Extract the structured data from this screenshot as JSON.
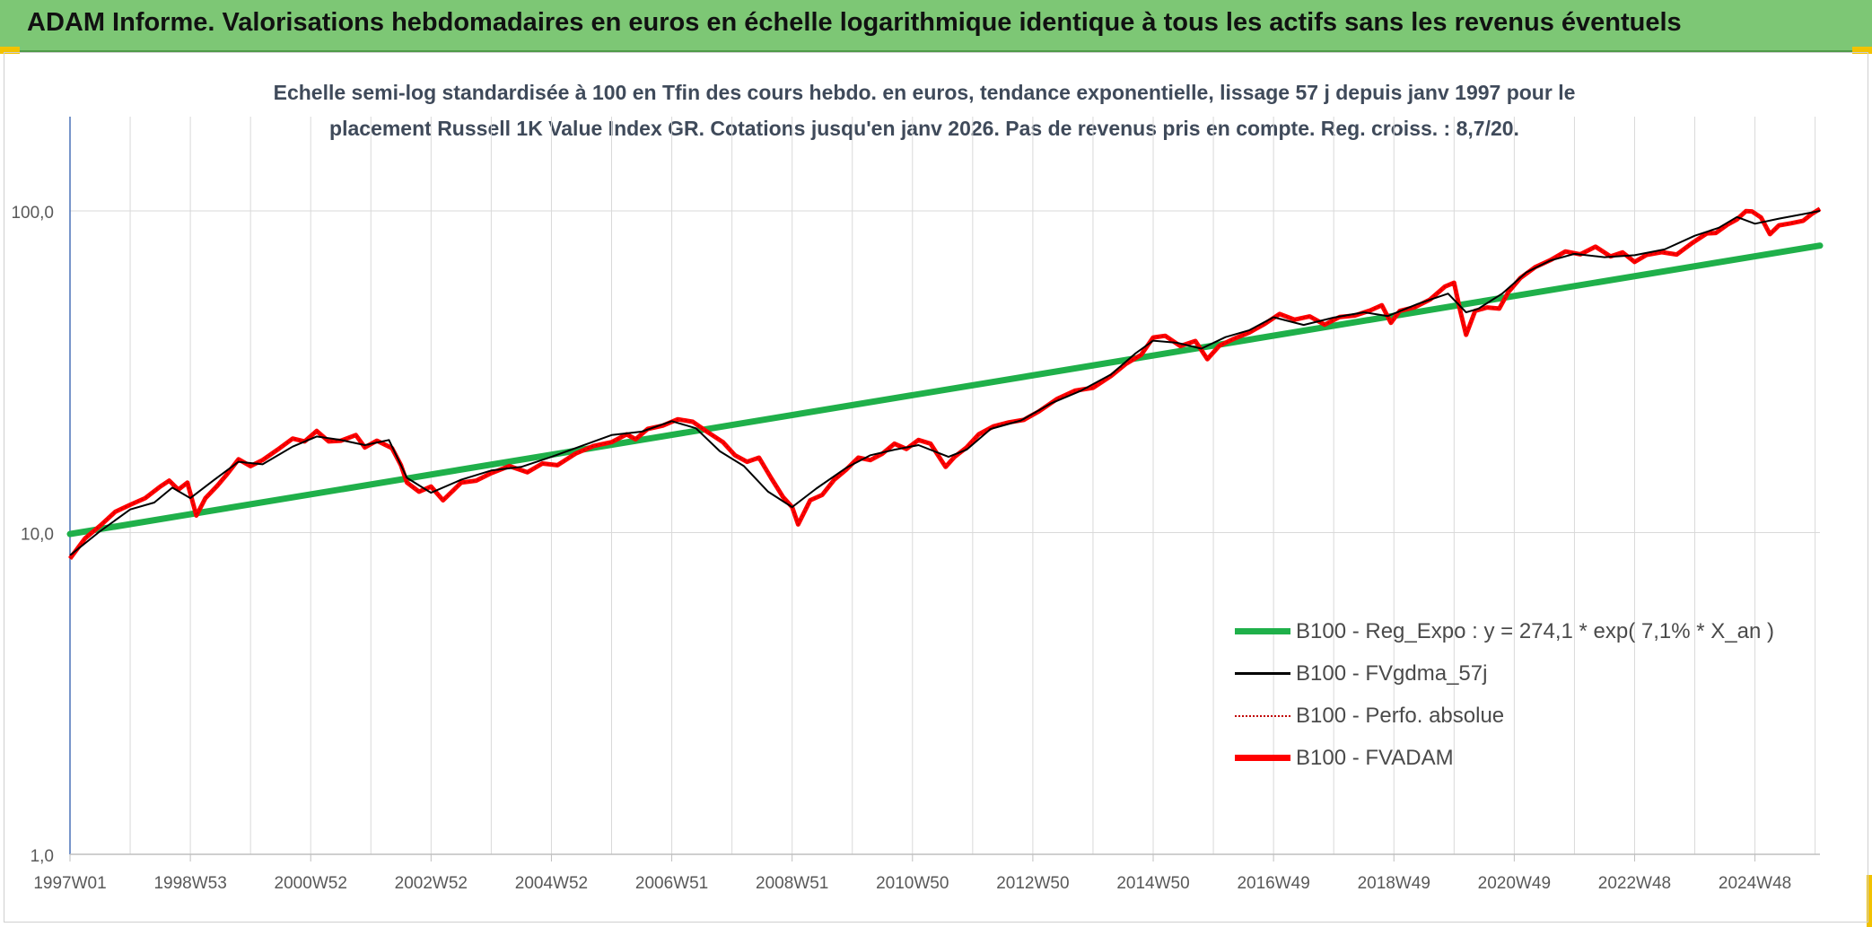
{
  "banner": {
    "title": "ADAM Informe. Valorisations hebdomadaires en euros en échelle logarithmique identique à tous les actifs sans les revenus éventuels"
  },
  "colors": {
    "banner_bg": "#7dc775",
    "reg_expo": "#1fb04a",
    "fvgdma": "#000000",
    "perfo": "#c00000",
    "fvadam": "#ff0000",
    "grid": "#d9d9d9"
  },
  "chart_data": {
    "type": "line",
    "title_line1": "Echelle semi-log standardisée à 100 en Tfin des cours hebdo. en euros, tendance exponentielle, lissage 57 j depuis janv 1997 pour le",
    "title_line2": "placement Russell 1K Value Index GR. Cotations jusqu'en janv 2026. Pas de revenus pris en compte. Reg. croiss. : 8,7/20.",
    "y_scale": "log",
    "ylim": [
      1,
      100
    ],
    "xlim": [
      1997.0,
      2026.08
    ],
    "y_ticks": [
      {
        "value": 1,
        "label": "1,0"
      },
      {
        "value": 10,
        "label": "10,0"
      },
      {
        "value": 100,
        "label": "100,0"
      }
    ],
    "x_ticks": [
      {
        "value": 1997.0,
        "label": "1997W01"
      },
      {
        "value": 1999.0,
        "label": "1998W53"
      },
      {
        "value": 2001.0,
        "label": "2000W52"
      },
      {
        "value": 2003.0,
        "label": "2002W52"
      },
      {
        "value": 2005.0,
        "label": "2004W52"
      },
      {
        "value": 2007.0,
        "label": "2006W51"
      },
      {
        "value": 2009.0,
        "label": "2008W51"
      },
      {
        "value": 2011.0,
        "label": "2010W50"
      },
      {
        "value": 2013.0,
        "label": "2012W50"
      },
      {
        "value": 2015.0,
        "label": "2014W50"
      },
      {
        "value": 2017.0,
        "label": "2016W49"
      },
      {
        "value": 2019.0,
        "label": "2018W49"
      },
      {
        "value": 2021.0,
        "label": "2020W49"
      },
      {
        "value": 2023.0,
        "label": "2022W48"
      },
      {
        "value": 2025.0,
        "label": "2024W48"
      }
    ],
    "grid": true,
    "legend_position": "bottom-right",
    "series": [
      {
        "name": "B100 - Reg_Expo : y = 274,1 * exp( 7,1% *  X_an )",
        "style": "thick-solid",
        "x": [
          1997.0,
          2026.08
        ],
        "y": [
          9.9,
          78.0
        ]
      },
      {
        "name": "B100 - FVgdma_57j",
        "style": "thin-solid",
        "x": [
          1997.0,
          1997.5,
          1998.0,
          1998.4,
          1998.7,
          1999.0,
          1999.4,
          1999.8,
          2000.2,
          2000.7,
          2001.1,
          2001.5,
          2001.9,
          2002.3,
          2002.6,
          2003.0,
          2003.5,
          2004.0,
          2004.5,
          2005.0,
          2005.5,
          2006.0,
          2006.5,
          2007.0,
          2007.4,
          2007.8,
          2008.2,
          2008.6,
          2009.0,
          2009.4,
          2009.9,
          2010.3,
          2010.7,
          2011.1,
          2011.6,
          2011.9,
          2012.3,
          2012.8,
          2013.3,
          2013.8,
          2014.3,
          2014.7,
          2015.0,
          2015.4,
          2015.8,
          2016.2,
          2016.6,
          2017.0,
          2017.5,
          2018.0,
          2018.5,
          2018.9,
          2019.4,
          2019.9,
          2020.2,
          2020.4,
          2020.8,
          2021.2,
          2021.6,
          2022.0,
          2022.5,
          2023.0,
          2023.5,
          2024.0,
          2024.4,
          2024.7,
          2025.0,
          2025.4,
          2025.8,
          2026.08
        ],
        "y": [
          8.5,
          10.1,
          11.8,
          12.4,
          13.8,
          12.8,
          14.6,
          16.6,
          16.3,
          18.5,
          19.9,
          19.4,
          18.7,
          19.4,
          14.8,
          13.3,
          14.6,
          15.6,
          16.0,
          17.2,
          18.6,
          20.1,
          20.6,
          22.2,
          21.1,
          17.9,
          16.1,
          13.4,
          12.0,
          13.7,
          15.9,
          17.4,
          18.1,
          18.7,
          17.2,
          18.1,
          21.0,
          22.3,
          25.2,
          27.6,
          31.0,
          36.0,
          39.5,
          38.9,
          37.3,
          40.5,
          42.6,
          46.7,
          44.2,
          46.6,
          48.4,
          47.1,
          51.4,
          55.3,
          48.4,
          49.6,
          55.3,
          64.4,
          70.1,
          73.5,
          71.8,
          72.8,
          75.9,
          83.7,
          88.6,
          95.7,
          91.2,
          94.6,
          97.7,
          100.0
        ]
      },
      {
        "name": "B100 - Perfo. absolue",
        "style": "dotted"
      },
      {
        "name": "B100 - FVADAM",
        "style": "thick-solid",
        "x": [
          1997.0,
          1997.25,
          1997.5,
          1997.75,
          1998.0,
          1998.25,
          1998.5,
          1998.65,
          1998.8,
          1998.95,
          1999.1,
          1999.25,
          1999.45,
          1999.6,
          1999.8,
          2000.0,
          2000.2,
          2000.45,
          2000.7,
          2000.9,
          2001.1,
          2001.3,
          2001.5,
          2001.75,
          2001.9,
          2002.1,
          2002.35,
          2002.5,
          2002.6,
          2002.8,
          2003.0,
          2003.2,
          2003.5,
          2003.75,
          2004.0,
          2004.3,
          2004.6,
          2004.85,
          2005.1,
          2005.4,
          2005.7,
          2006.0,
          2006.25,
          2006.4,
          2006.6,
          2006.85,
          2007.1,
          2007.35,
          2007.6,
          2007.85,
          2008.05,
          2008.25,
          2008.45,
          2008.65,
          2008.85,
          2009.0,
          2009.1,
          2009.3,
          2009.5,
          2009.7,
          2009.9,
          2010.1,
          2010.3,
          2010.5,
          2010.7,
          2010.9,
          2011.1,
          2011.3,
          2011.55,
          2011.7,
          2011.9,
          2012.1,
          2012.35,
          2012.6,
          2012.85,
          2013.1,
          2013.4,
          2013.7,
          2014.0,
          2014.3,
          2014.55,
          2014.8,
          2015.0,
          2015.2,
          2015.45,
          2015.7,
          2015.9,
          2016.1,
          2016.35,
          2016.6,
          2016.85,
          2017.1,
          2017.35,
          2017.6,
          2017.85,
          2018.1,
          2018.35,
          2018.6,
          2018.8,
          2018.95,
          2019.1,
          2019.35,
          2019.6,
          2019.85,
          2020.0,
          2020.1,
          2020.2,
          2020.35,
          2020.55,
          2020.75,
          2020.9,
          2021.1,
          2021.35,
          2021.6,
          2021.85,
          2022.1,
          2022.35,
          2022.6,
          2022.8,
          2023.0,
          2023.2,
          2023.45,
          2023.7,
          2023.95,
          2024.2,
          2024.35,
          2024.55,
          2024.7,
          2024.85,
          2024.95,
          2025.1,
          2025.25,
          2025.4,
          2025.6,
          2025.8,
          2025.95,
          2026.08
        ],
        "y": [
          8.3,
          9.6,
          10.5,
          11.6,
          12.2,
          12.8,
          13.9,
          14.5,
          13.6,
          14.3,
          11.3,
          12.8,
          14.0,
          15.1,
          16.9,
          16.1,
          16.8,
          18.1,
          19.6,
          19.2,
          20.7,
          19.2,
          19.3,
          20.1,
          18.4,
          19.3,
          18.3,
          16.2,
          14.3,
          13.4,
          13.9,
          12.6,
          14.3,
          14.5,
          15.3,
          16.1,
          15.4,
          16.4,
          16.2,
          17.6,
          18.6,
          19.1,
          20.2,
          19.5,
          21.0,
          21.5,
          22.5,
          22.1,
          20.5,
          19.1,
          17.4,
          16.6,
          17.1,
          14.8,
          12.9,
          12.0,
          10.6,
          12.6,
          13.1,
          14.6,
          15.7,
          17.1,
          16.8,
          17.6,
          18.9,
          18.2,
          19.4,
          18.9,
          16.0,
          17.2,
          18.4,
          20.2,
          21.4,
          22.0,
          22.4,
          23.8,
          26.0,
          27.6,
          28.2,
          30.7,
          33.5,
          35.7,
          40.4,
          40.9,
          38.0,
          39.4,
          34.6,
          38.1,
          40.1,
          41.9,
          44.5,
          47.8,
          45.9,
          47.0,
          44.3,
          46.8,
          47.3,
          49.0,
          50.9,
          44.9,
          48.9,
          50.2,
          53.0,
          58.2,
          59.8,
          49.1,
          41.2,
          48.9,
          50.1,
          49.7,
          55.8,
          61.8,
          66.9,
          70.3,
          74.8,
          73.3,
          77.4,
          72.2,
          74.3,
          69.4,
          73.0,
          74.4,
          73.2,
          79.3,
          85.1,
          85.4,
          90.8,
          94.1,
          99.8,
          99.6,
          95.4,
          84.7,
          90.2,
          91.5,
          93.1,
          98.0,
          101.5
        ]
      }
    ]
  }
}
